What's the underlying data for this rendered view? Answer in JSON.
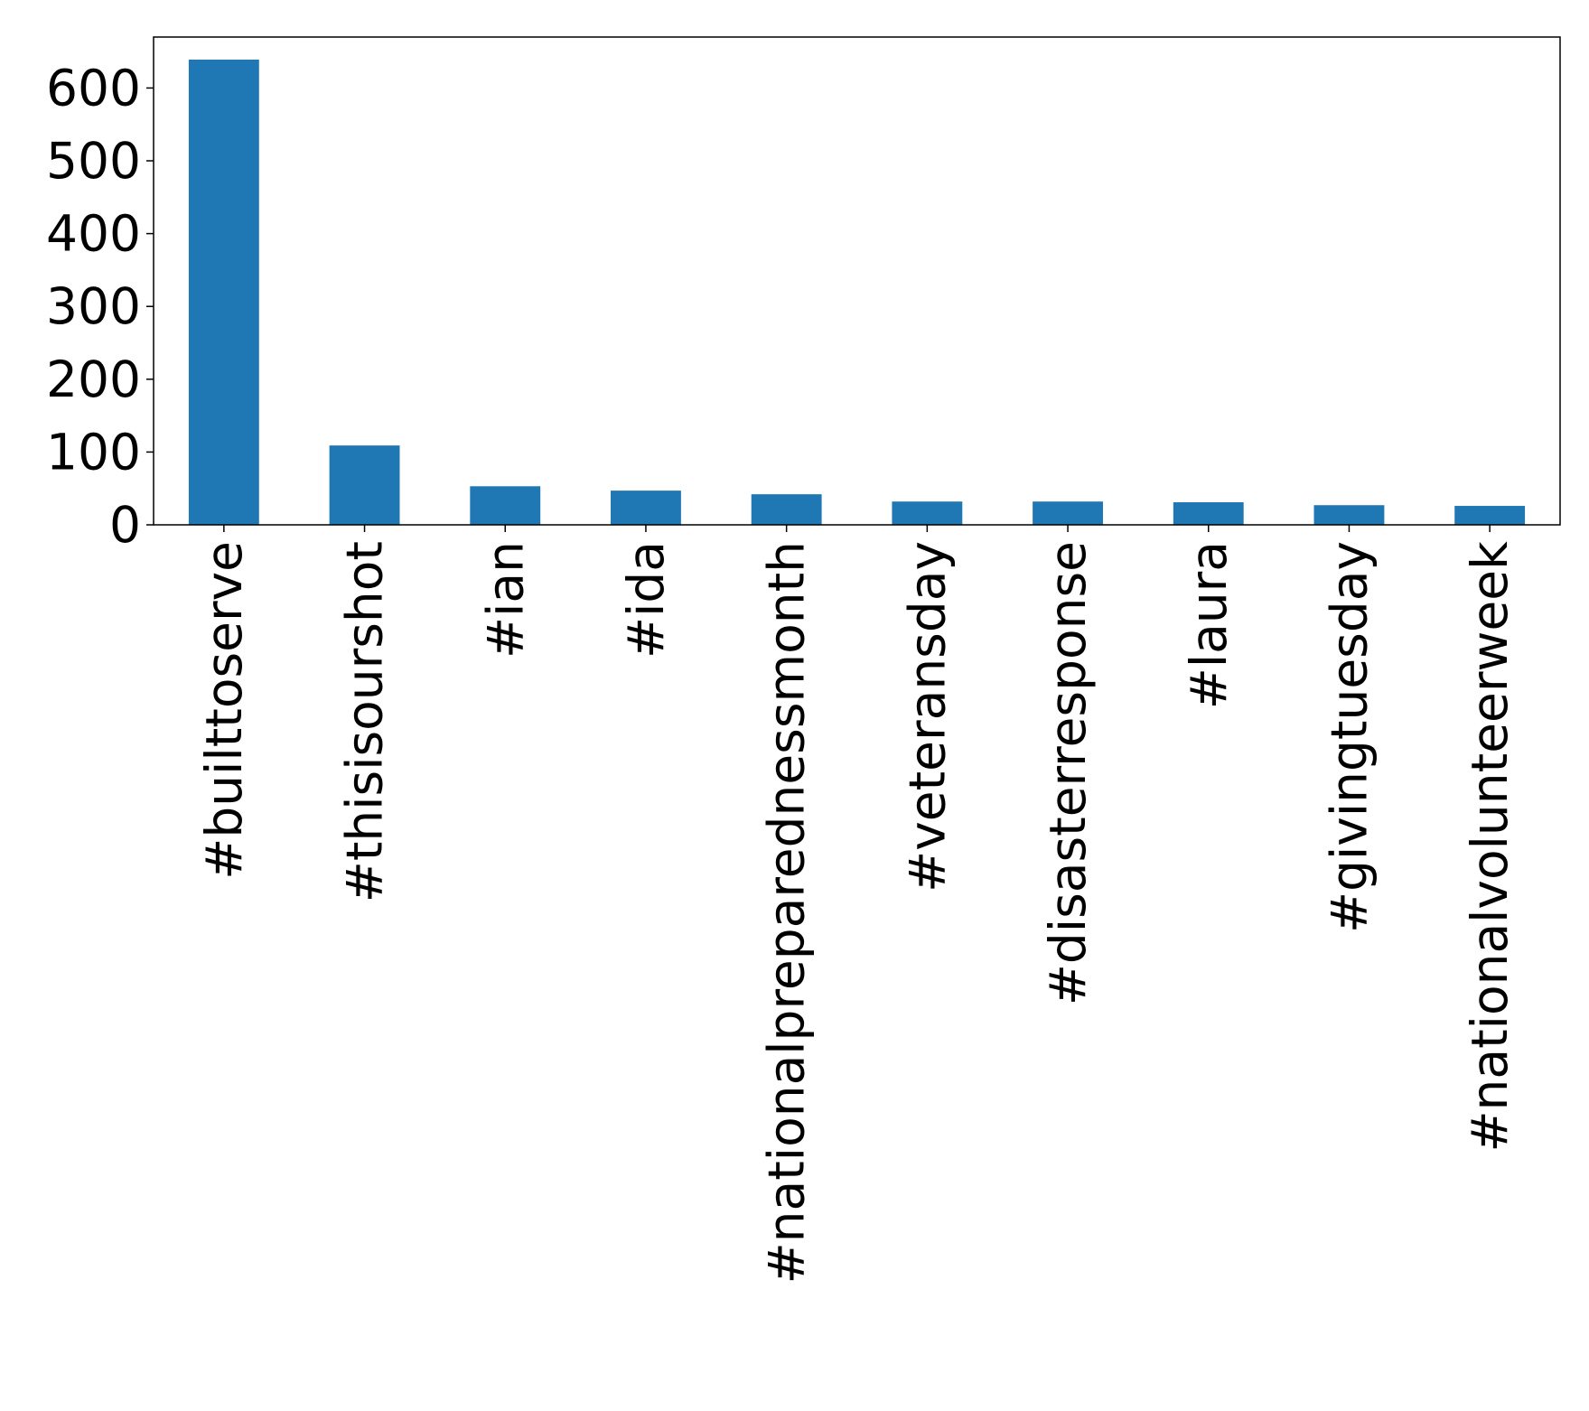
{
  "chart_data": {
    "type": "bar",
    "title": "",
    "xlabel": "",
    "ylabel": "",
    "categories": [
      "#builttoserve",
      "#thisisourshot",
      "#ian",
      "#ida",
      "#nationalpreparednessmonth",
      "#veteransday",
      "#disasterresponse",
      "#laura",
      "#givingtuesday",
      "#nationalvolunteerweek"
    ],
    "values": [
      639,
      109,
      53,
      47,
      42,
      32,
      32,
      31,
      27,
      26
    ],
    "ylim": [
      0,
      670
    ],
    "yticks": [
      0,
      100,
      200,
      300,
      400,
      500,
      600
    ],
    "grid": false,
    "legend": "none",
    "bar_color": "#1f77b4"
  }
}
